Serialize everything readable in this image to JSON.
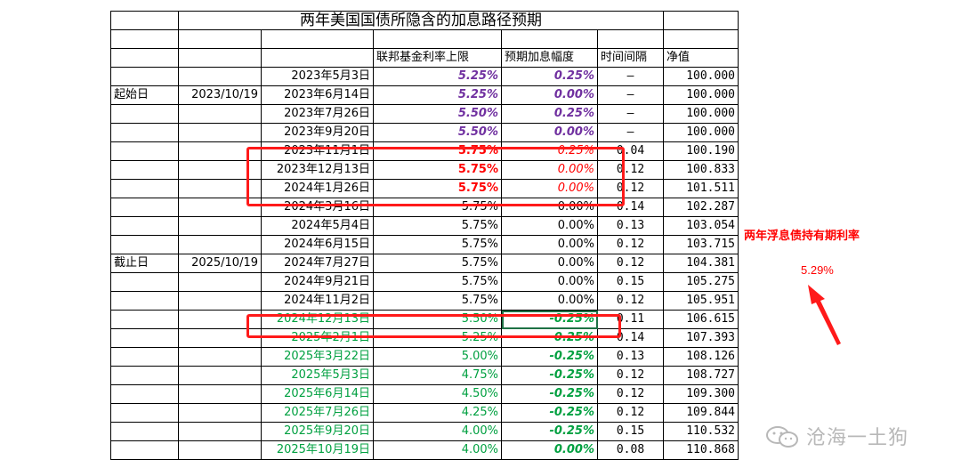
{
  "title": "两年美国国债所隐含的加息路径预期",
  "headers": {
    "rate_cap": "联邦基金利率上限",
    "expected_hike": "预期加息幅度",
    "interval": "时间间隔",
    "nav": "净值"
  },
  "start_label": "起始日",
  "start_date": "2023/10/19",
  "end_label": "截止日",
  "end_date": "2025/10/19",
  "rows": [
    {
      "date": "2023年5月3日",
      "rate": "5.25%",
      "hike": "0.25%",
      "interval": "–",
      "nav": "100.000"
    },
    {
      "date": "2023年6月14日",
      "rate": "5.25%",
      "hike": "0.00%",
      "interval": "–",
      "nav": "100.000"
    },
    {
      "date": "2023年7月26日",
      "rate": "5.50%",
      "hike": "0.25%",
      "interval": "–",
      "nav": "100.000"
    },
    {
      "date": "2023年9月20日",
      "rate": "5.50%",
      "hike": "0.00%",
      "interval": "–",
      "nav": "100.000"
    },
    {
      "date": "2023年11月1日",
      "rate": "5.75%",
      "hike": "0.25%",
      "interval": "0.04",
      "nav": "100.190"
    },
    {
      "date": "2023年12月13日",
      "rate": "5.75%",
      "hike": "0.00%",
      "interval": "0.12",
      "nav": "100.833"
    },
    {
      "date": "2024年1月26日",
      "rate": "5.75%",
      "hike": "0.00%",
      "interval": "0.12",
      "nav": "101.511"
    },
    {
      "date": "2024年3月16日",
      "rate": "5.75%",
      "hike": "0.00%",
      "interval": "0.14",
      "nav": "102.287"
    },
    {
      "date": "2024年5月4日",
      "rate": "5.75%",
      "hike": "0.00%",
      "interval": "0.13",
      "nav": "103.054"
    },
    {
      "date": "2024年6月15日",
      "rate": "5.75%",
      "hike": "0.00%",
      "interval": "0.12",
      "nav": "103.715"
    },
    {
      "date": "2024年7月27日",
      "rate": "5.75%",
      "hike": "0.00%",
      "interval": "0.12",
      "nav": "104.381"
    },
    {
      "date": "2024年9月21日",
      "rate": "5.75%",
      "hike": "0.00%",
      "interval": "0.15",
      "nav": "105.275"
    },
    {
      "date": "2024年11月2日",
      "rate": "5.75%",
      "hike": "0.00%",
      "interval": "0.12",
      "nav": "105.951"
    },
    {
      "date": "2024年12月13日",
      "rate": "5.50%",
      "hike": "-0.25%",
      "interval": "0.11",
      "nav": "106.615"
    },
    {
      "date": "2025年2月1日",
      "rate": "5.25%",
      "hike": "-0.25%",
      "interval": "0.14",
      "nav": "107.393"
    },
    {
      "date": "2025年3月22日",
      "rate": "5.00%",
      "hike": "-0.25%",
      "interval": "0.13",
      "nav": "108.126"
    },
    {
      "date": "2025年5月3日",
      "rate": "4.75%",
      "hike": "-0.25%",
      "interval": "0.12",
      "nav": "108.727"
    },
    {
      "date": "2025年6月14日",
      "rate": "4.50%",
      "hike": "-0.25%",
      "interval": "0.12",
      "nav": "109.300"
    },
    {
      "date": "2025年7月26日",
      "rate": "4.25%",
      "hike": "-0.25%",
      "interval": "0.12",
      "nav": "109.844"
    },
    {
      "date": "2025年9月20日",
      "rate": "4.00%",
      "hike": "-0.25%",
      "interval": "0.15",
      "nav": "110.532"
    },
    {
      "date": "2025年10月19日",
      "rate": "4.00%",
      "hike": "0.00%",
      "interval": "0.08",
      "nav": "110.868"
    }
  ],
  "annotation": {
    "label": "两年浮息债持有期利率",
    "value": "5.29%"
  },
  "watermark": "沧海一土狗",
  "colors": {
    "purple": "#7030a0",
    "red": "#ff0000",
    "green": "#00a040",
    "box": "#ff1a1a"
  }
}
